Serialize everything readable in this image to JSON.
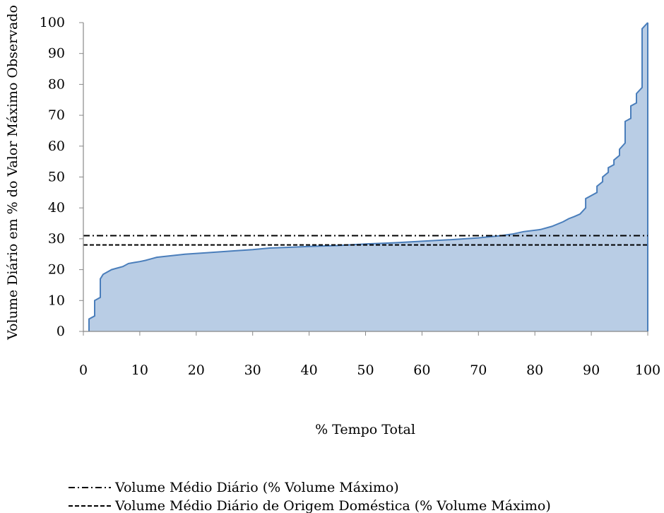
{
  "chart_data": {
    "type": "area",
    "xlabel": "% Tempo Total",
    "ylabel": "Volume  Diário em % do Valor Máximo Observado",
    "xlim": [
      0,
      100
    ],
    "ylim": [
      0,
      100
    ],
    "x_ticks": [
      0,
      10,
      20,
      30,
      40,
      50,
      60,
      70,
      80,
      90,
      100
    ],
    "y_ticks": [
      0,
      10,
      20,
      30,
      40,
      50,
      60,
      70,
      80,
      90,
      100
    ],
    "grid": false,
    "area_fill_color": "#b9cde5",
    "area_line_color": "#4a7ebb",
    "series": [
      {
        "x": [
          1,
          1,
          2,
          2,
          3,
          3,
          3.5,
          4,
          5,
          6,
          7,
          8,
          9,
          10,
          11,
          12,
          13,
          15,
          18,
          22,
          26,
          30,
          33,
          36,
          40,
          45,
          50,
          55,
          60,
          65,
          70,
          74,
          76,
          78,
          81,
          83,
          85,
          86,
          87,
          88,
          89,
          89,
          90,
          91,
          91,
          92,
          92,
          93,
          93,
          94,
          94,
          95,
          95,
          96,
          96,
          97,
          97,
          98,
          98,
          99,
          99,
          100
        ],
        "y": [
          0,
          4,
          5,
          10,
          11,
          17,
          18.5,
          19,
          20,
          20.5,
          21,
          22,
          22.3,
          22.6,
          23,
          23.5,
          24,
          24.4,
          25,
          25.5,
          26,
          26.5,
          27,
          27.2,
          27.5,
          27.8,
          28.3,
          28.7,
          29.2,
          29.7,
          30.3,
          31,
          31.5,
          32.3,
          33,
          34,
          35.5,
          36.5,
          37.2,
          38,
          40,
          43,
          44,
          45,
          47,
          48.5,
          50,
          51.5,
          53,
          54,
          55.5,
          57,
          59,
          61,
          68,
          69,
          73,
          74,
          77,
          79,
          98,
          100
        ]
      }
    ],
    "reference_lines": [
      {
        "name": "Volume Médio Diário (% Volume Máximo)",
        "y": 31,
        "style": "dash-dot",
        "color": "#000000"
      },
      {
        "name": "Volume Médio Diário de Origem Doméstica (% Volume Máximo)",
        "y": 28,
        "style": "dashed",
        "color": "#000000"
      }
    ],
    "legend_position": "bottom-left"
  }
}
